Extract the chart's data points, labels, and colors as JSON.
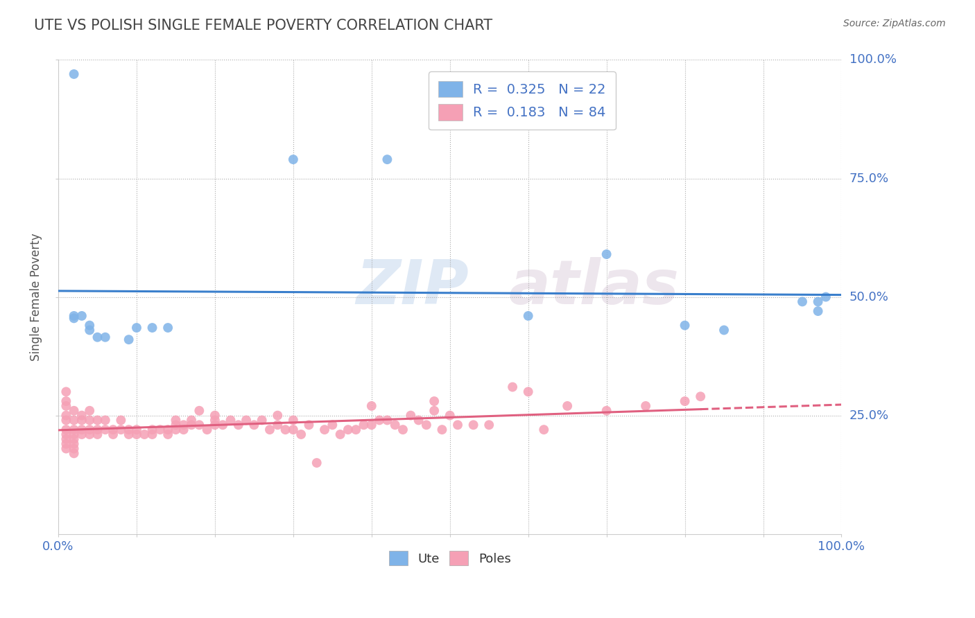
{
  "title": "UTE VS POLISH SINGLE FEMALE POVERTY CORRELATION CHART",
  "source": "Source: ZipAtlas.com",
  "ylabel": "Single Female Poverty",
  "legend_bottom": [
    "Ute",
    "Poles"
  ],
  "ute_color": "#7fb3e8",
  "poles_color": "#f5a0b5",
  "ute_line_color": "#3a7fcc",
  "poles_line_color": "#e06080",
  "watermark_zip": "ZIP",
  "watermark_atlas": "atlas",
  "background_color": "#ffffff",
  "ute_points": [
    [
      0.02,
      0.97
    ],
    [
      0.02,
      0.46
    ],
    [
      0.02,
      0.455
    ],
    [
      0.03,
      0.46
    ],
    [
      0.04,
      0.44
    ],
    [
      0.04,
      0.43
    ],
    [
      0.05,
      0.415
    ],
    [
      0.06,
      0.415
    ],
    [
      0.09,
      0.41
    ],
    [
      0.1,
      0.435
    ],
    [
      0.12,
      0.435
    ],
    [
      0.14,
      0.435
    ],
    [
      0.3,
      0.79
    ],
    [
      0.42,
      0.79
    ],
    [
      0.6,
      0.46
    ],
    [
      0.7,
      0.59
    ],
    [
      0.8,
      0.44
    ],
    [
      0.85,
      0.43
    ],
    [
      0.95,
      0.49
    ],
    [
      0.97,
      0.47
    ],
    [
      0.97,
      0.49
    ],
    [
      0.98,
      0.5
    ]
  ],
  "poles_points": [
    [
      0.01,
      0.28
    ],
    [
      0.01,
      0.3
    ],
    [
      0.01,
      0.25
    ],
    [
      0.01,
      0.27
    ],
    [
      0.01,
      0.24
    ],
    [
      0.01,
      0.22
    ],
    [
      0.01,
      0.21
    ],
    [
      0.01,
      0.2
    ],
    [
      0.01,
      0.18
    ],
    [
      0.01,
      0.19
    ],
    [
      0.02,
      0.26
    ],
    [
      0.02,
      0.24
    ],
    [
      0.02,
      0.22
    ],
    [
      0.02,
      0.21
    ],
    [
      0.02,
      0.2
    ],
    [
      0.02,
      0.19
    ],
    [
      0.02,
      0.18
    ],
    [
      0.02,
      0.17
    ],
    [
      0.03,
      0.25
    ],
    [
      0.03,
      0.24
    ],
    [
      0.03,
      0.22
    ],
    [
      0.03,
      0.21
    ],
    [
      0.04,
      0.26
    ],
    [
      0.04,
      0.24
    ],
    [
      0.04,
      0.22
    ],
    [
      0.04,
      0.21
    ],
    [
      0.05,
      0.24
    ],
    [
      0.05,
      0.22
    ],
    [
      0.05,
      0.21
    ],
    [
      0.06,
      0.22
    ],
    [
      0.06,
      0.24
    ],
    [
      0.07,
      0.22
    ],
    [
      0.07,
      0.21
    ],
    [
      0.08,
      0.22
    ],
    [
      0.08,
      0.24
    ],
    [
      0.09,
      0.21
    ],
    [
      0.09,
      0.22
    ],
    [
      0.1,
      0.21
    ],
    [
      0.1,
      0.22
    ],
    [
      0.11,
      0.21
    ],
    [
      0.12,
      0.22
    ],
    [
      0.12,
      0.21
    ],
    [
      0.13,
      0.22
    ],
    [
      0.14,
      0.21
    ],
    [
      0.14,
      0.22
    ],
    [
      0.15,
      0.23
    ],
    [
      0.15,
      0.24
    ],
    [
      0.15,
      0.22
    ],
    [
      0.16,
      0.22
    ],
    [
      0.16,
      0.23
    ],
    [
      0.17,
      0.23
    ],
    [
      0.17,
      0.24
    ],
    [
      0.18,
      0.23
    ],
    [
      0.18,
      0.26
    ],
    [
      0.19,
      0.22
    ],
    [
      0.2,
      0.23
    ],
    [
      0.2,
      0.24
    ],
    [
      0.2,
      0.25
    ],
    [
      0.21,
      0.23
    ],
    [
      0.22,
      0.24
    ],
    [
      0.23,
      0.23
    ],
    [
      0.24,
      0.24
    ],
    [
      0.25,
      0.23
    ],
    [
      0.26,
      0.24
    ],
    [
      0.27,
      0.22
    ],
    [
      0.28,
      0.23
    ],
    [
      0.28,
      0.25
    ],
    [
      0.29,
      0.22
    ],
    [
      0.3,
      0.22
    ],
    [
      0.3,
      0.24
    ],
    [
      0.31,
      0.21
    ],
    [
      0.32,
      0.23
    ],
    [
      0.33,
      0.15
    ],
    [
      0.34,
      0.22
    ],
    [
      0.35,
      0.23
    ],
    [
      0.36,
      0.21
    ],
    [
      0.37,
      0.22
    ],
    [
      0.38,
      0.22
    ],
    [
      0.39,
      0.23
    ],
    [
      0.4,
      0.23
    ],
    [
      0.4,
      0.27
    ],
    [
      0.41,
      0.24
    ],
    [
      0.42,
      0.24
    ],
    [
      0.43,
      0.23
    ],
    [
      0.44,
      0.22
    ],
    [
      0.45,
      0.25
    ],
    [
      0.46,
      0.24
    ],
    [
      0.47,
      0.23
    ],
    [
      0.48,
      0.26
    ],
    [
      0.48,
      0.28
    ],
    [
      0.49,
      0.22
    ],
    [
      0.5,
      0.25
    ],
    [
      0.51,
      0.23
    ],
    [
      0.53,
      0.23
    ],
    [
      0.55,
      0.23
    ],
    [
      0.58,
      0.31
    ],
    [
      0.6,
      0.3
    ],
    [
      0.62,
      0.22
    ],
    [
      0.65,
      0.27
    ],
    [
      0.7,
      0.26
    ],
    [
      0.75,
      0.27
    ],
    [
      0.8,
      0.28
    ],
    [
      0.82,
      0.29
    ]
  ]
}
